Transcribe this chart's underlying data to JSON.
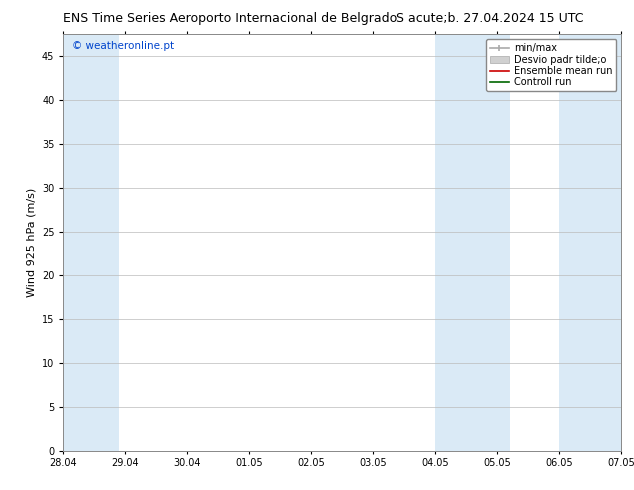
{
  "title_left": "ENS Time Series Aeroporto Internacional de Belgrado",
  "title_right": "S acute;b. 27.04.2024 15 UTC",
  "ylabel": "Wind 925 hPa (m/s)",
  "watermark": "© weatheronline.pt",
  "xticklabels": [
    "28.04",
    "29.04",
    "30.04",
    "01.05",
    "02.05",
    "03.05",
    "04.05",
    "05.05",
    "06.05",
    "07.05"
  ],
  "yticks": [
    0,
    5,
    10,
    15,
    20,
    25,
    30,
    35,
    40,
    45
  ],
  "ylim": [
    0,
    47.5
  ],
  "xlim": [
    0,
    9
  ],
  "legend_entries": [
    "min/max",
    "Desvio padr tilde;o",
    "Ensemble mean run",
    "Controll run"
  ],
  "band_color": "#daeaf6",
  "background_color": "#ffffff",
  "title_fontsize": 9,
  "tick_fontsize": 7,
  "ylabel_fontsize": 8,
  "legend_fontsize": 7,
  "watermark_color": "#0044cc"
}
